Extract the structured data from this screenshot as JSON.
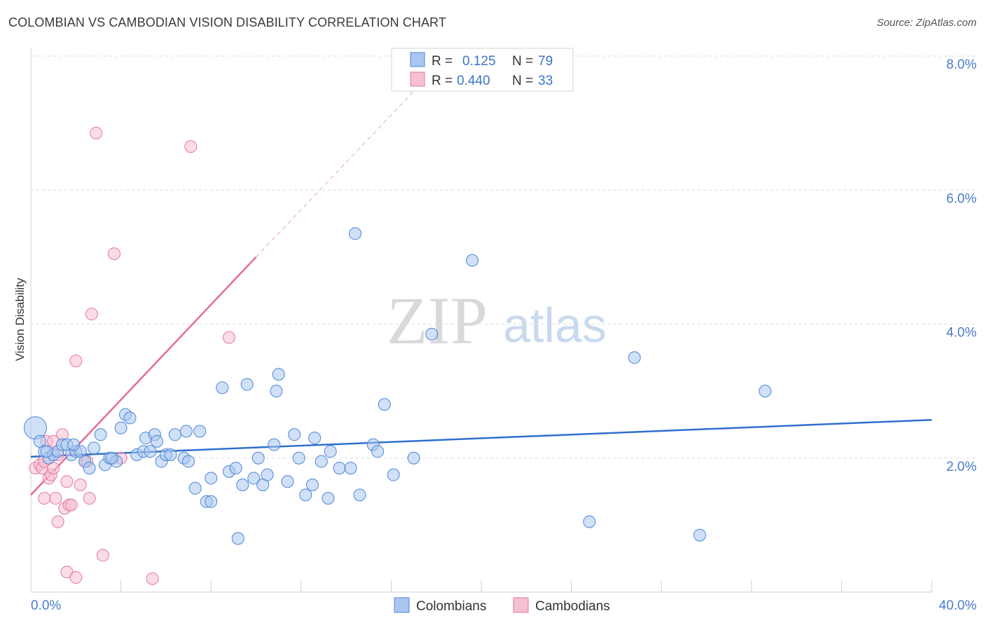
{
  "header": {
    "title": "COLOMBIAN VS CAMBODIAN VISION DISABILITY CORRELATION CHART",
    "source": "Source: ZipAtlas.com"
  },
  "watermark": {
    "zip": "ZIP",
    "atlas": "atlas"
  },
  "colors": {
    "colombians": "#4a86d8",
    "colombians_fill": "#a9c6ef",
    "cambodians": "#e8769f",
    "cambodians_fill": "#f6bfd2",
    "tick_label": "#4a7bc8",
    "grid": "#dcdcdc"
  },
  "chart_data": {
    "type": "scatter",
    "title": "COLOMBIAN VS CAMBODIAN VISION DISABILITY CORRELATION CHART",
    "xlabel": "",
    "ylabel": "Vision Disability",
    "xlim": [
      0,
      40
    ],
    "ylim": [
      0,
      8
    ],
    "x_tick_labels": [
      "0.0%",
      "40.0%"
    ],
    "y_ticks": [
      2,
      4,
      6,
      8
    ],
    "y_tick_labels": [
      "2.0%",
      "4.0%",
      "6.0%",
      "8.0%"
    ],
    "grid": true,
    "legend_position": "top-center",
    "stats": [
      {
        "series": "Colombians",
        "r_label": "R =",
        "r_value": "0.125",
        "n_label": "N =",
        "n_value": "79"
      },
      {
        "series": "Cambodians",
        "r_label": "R =",
        "r_value": "0.440",
        "n_label": "N =",
        "n_value": "33"
      }
    ],
    "series": [
      {
        "name": "Colombians",
        "trend": {
          "x": [
            0,
            40
          ],
          "y": [
            2.02,
            2.57
          ]
        },
        "points": [
          [
            0.2,
            2.45
          ],
          [
            0.4,
            2.25
          ],
          [
            0.6,
            2.1
          ],
          [
            0.8,
            2.0
          ],
          [
            1.0,
            2.05
          ],
          [
            1.2,
            2.1
          ],
          [
            1.4,
            2.2
          ],
          [
            1.6,
            2.2
          ],
          [
            1.8,
            2.05
          ],
          [
            2.0,
            2.1
          ],
          [
            2.2,
            2.1
          ],
          [
            2.4,
            1.95
          ],
          [
            2.6,
            1.85
          ],
          [
            2.8,
            2.15
          ],
          [
            3.1,
            2.35
          ],
          [
            3.3,
            1.9
          ],
          [
            3.5,
            2.0
          ],
          [
            3.8,
            1.95
          ],
          [
            4.0,
            2.45
          ],
          [
            4.2,
            2.65
          ],
          [
            4.4,
            2.6
          ],
          [
            4.7,
            2.05
          ],
          [
            5.0,
            2.1
          ],
          [
            5.1,
            2.3
          ],
          [
            5.3,
            2.1
          ],
          [
            5.5,
            2.35
          ],
          [
            5.6,
            2.25
          ],
          [
            5.8,
            1.95
          ],
          [
            6.0,
            2.05
          ],
          [
            6.2,
            2.05
          ],
          [
            6.4,
            2.35
          ],
          [
            6.8,
            2.0
          ],
          [
            7.0,
            1.95
          ],
          [
            6.9,
            2.4
          ],
          [
            7.5,
            2.4
          ],
          [
            7.3,
            1.55
          ],
          [
            7.8,
            1.35
          ],
          [
            8.0,
            1.35
          ],
          [
            8.0,
            1.7
          ],
          [
            8.5,
            3.05
          ],
          [
            8.8,
            1.8
          ],
          [
            9.1,
            1.85
          ],
          [
            9.2,
            0.8
          ],
          [
            9.4,
            1.6
          ],
          [
            9.6,
            3.1
          ],
          [
            9.9,
            1.7
          ],
          [
            10.1,
            2.0
          ],
          [
            10.3,
            1.6
          ],
          [
            10.5,
            1.75
          ],
          [
            10.8,
            2.2
          ],
          [
            10.9,
            3.0
          ],
          [
            11.0,
            3.25
          ],
          [
            11.4,
            1.65
          ],
          [
            11.7,
            2.35
          ],
          [
            11.9,
            2.0
          ],
          [
            12.2,
            1.45
          ],
          [
            12.5,
            1.6
          ],
          [
            12.6,
            2.3
          ],
          [
            12.9,
            1.95
          ],
          [
            13.2,
            1.4
          ],
          [
            13.3,
            2.1
          ],
          [
            13.7,
            1.85
          ],
          [
            14.2,
            1.85
          ],
          [
            14.4,
            5.35
          ],
          [
            14.6,
            1.45
          ],
          [
            15.2,
            2.2
          ],
          [
            15.4,
            2.1
          ],
          [
            15.7,
            2.8
          ],
          [
            16.1,
            1.75
          ],
          [
            17.0,
            2.0
          ],
          [
            17.8,
            3.85
          ],
          [
            19.6,
            4.95
          ],
          [
            24.8,
            1.05
          ],
          [
            26.8,
            3.5
          ],
          [
            29.7,
            0.85
          ],
          [
            32.6,
            3.0
          ],
          [
            0.7,
            2.1
          ],
          [
            1.9,
            2.2
          ],
          [
            3.6,
            2.0
          ]
        ]
      },
      {
        "name": "Cambodians",
        "trend": {
          "x": [
            0,
            10
          ],
          "y": [
            1.45,
            5.0
          ]
        },
        "trend_extension": {
          "x": [
            10,
            17.5
          ],
          "y": [
            5.0,
            7.65
          ]
        },
        "points": [
          [
            0.2,
            1.85
          ],
          [
            0.4,
            1.9
          ],
          [
            0.5,
            1.85
          ],
          [
            0.6,
            1.95
          ],
          [
            0.7,
            2.25
          ],
          [
            0.8,
            1.7
          ],
          [
            0.9,
            1.75
          ],
          [
            1.0,
            1.85
          ],
          [
            1.0,
            2.25
          ],
          [
            1.2,
            2.05
          ],
          [
            1.4,
            2.35
          ],
          [
            1.5,
            1.25
          ],
          [
            1.6,
            1.65
          ],
          [
            1.7,
            1.3
          ],
          [
            2.0,
            3.45
          ],
          [
            2.2,
            1.6
          ],
          [
            2.4,
            1.95
          ],
          [
            2.6,
            1.4
          ],
          [
            2.9,
            6.85
          ],
          [
            3.2,
            0.55
          ],
          [
            3.7,
            5.05
          ],
          [
            4.0,
            2.0
          ],
          [
            2.7,
            4.15
          ],
          [
            1.1,
            1.4
          ],
          [
            1.2,
            1.05
          ],
          [
            1.6,
            0.3
          ],
          [
            2.0,
            0.22
          ],
          [
            5.4,
            0.2
          ],
          [
            7.1,
            6.65
          ],
          [
            8.8,
            3.8
          ],
          [
            0.6,
            1.4
          ],
          [
            1.8,
            1.3
          ],
          [
            2.5,
            1.95
          ]
        ]
      }
    ]
  }
}
